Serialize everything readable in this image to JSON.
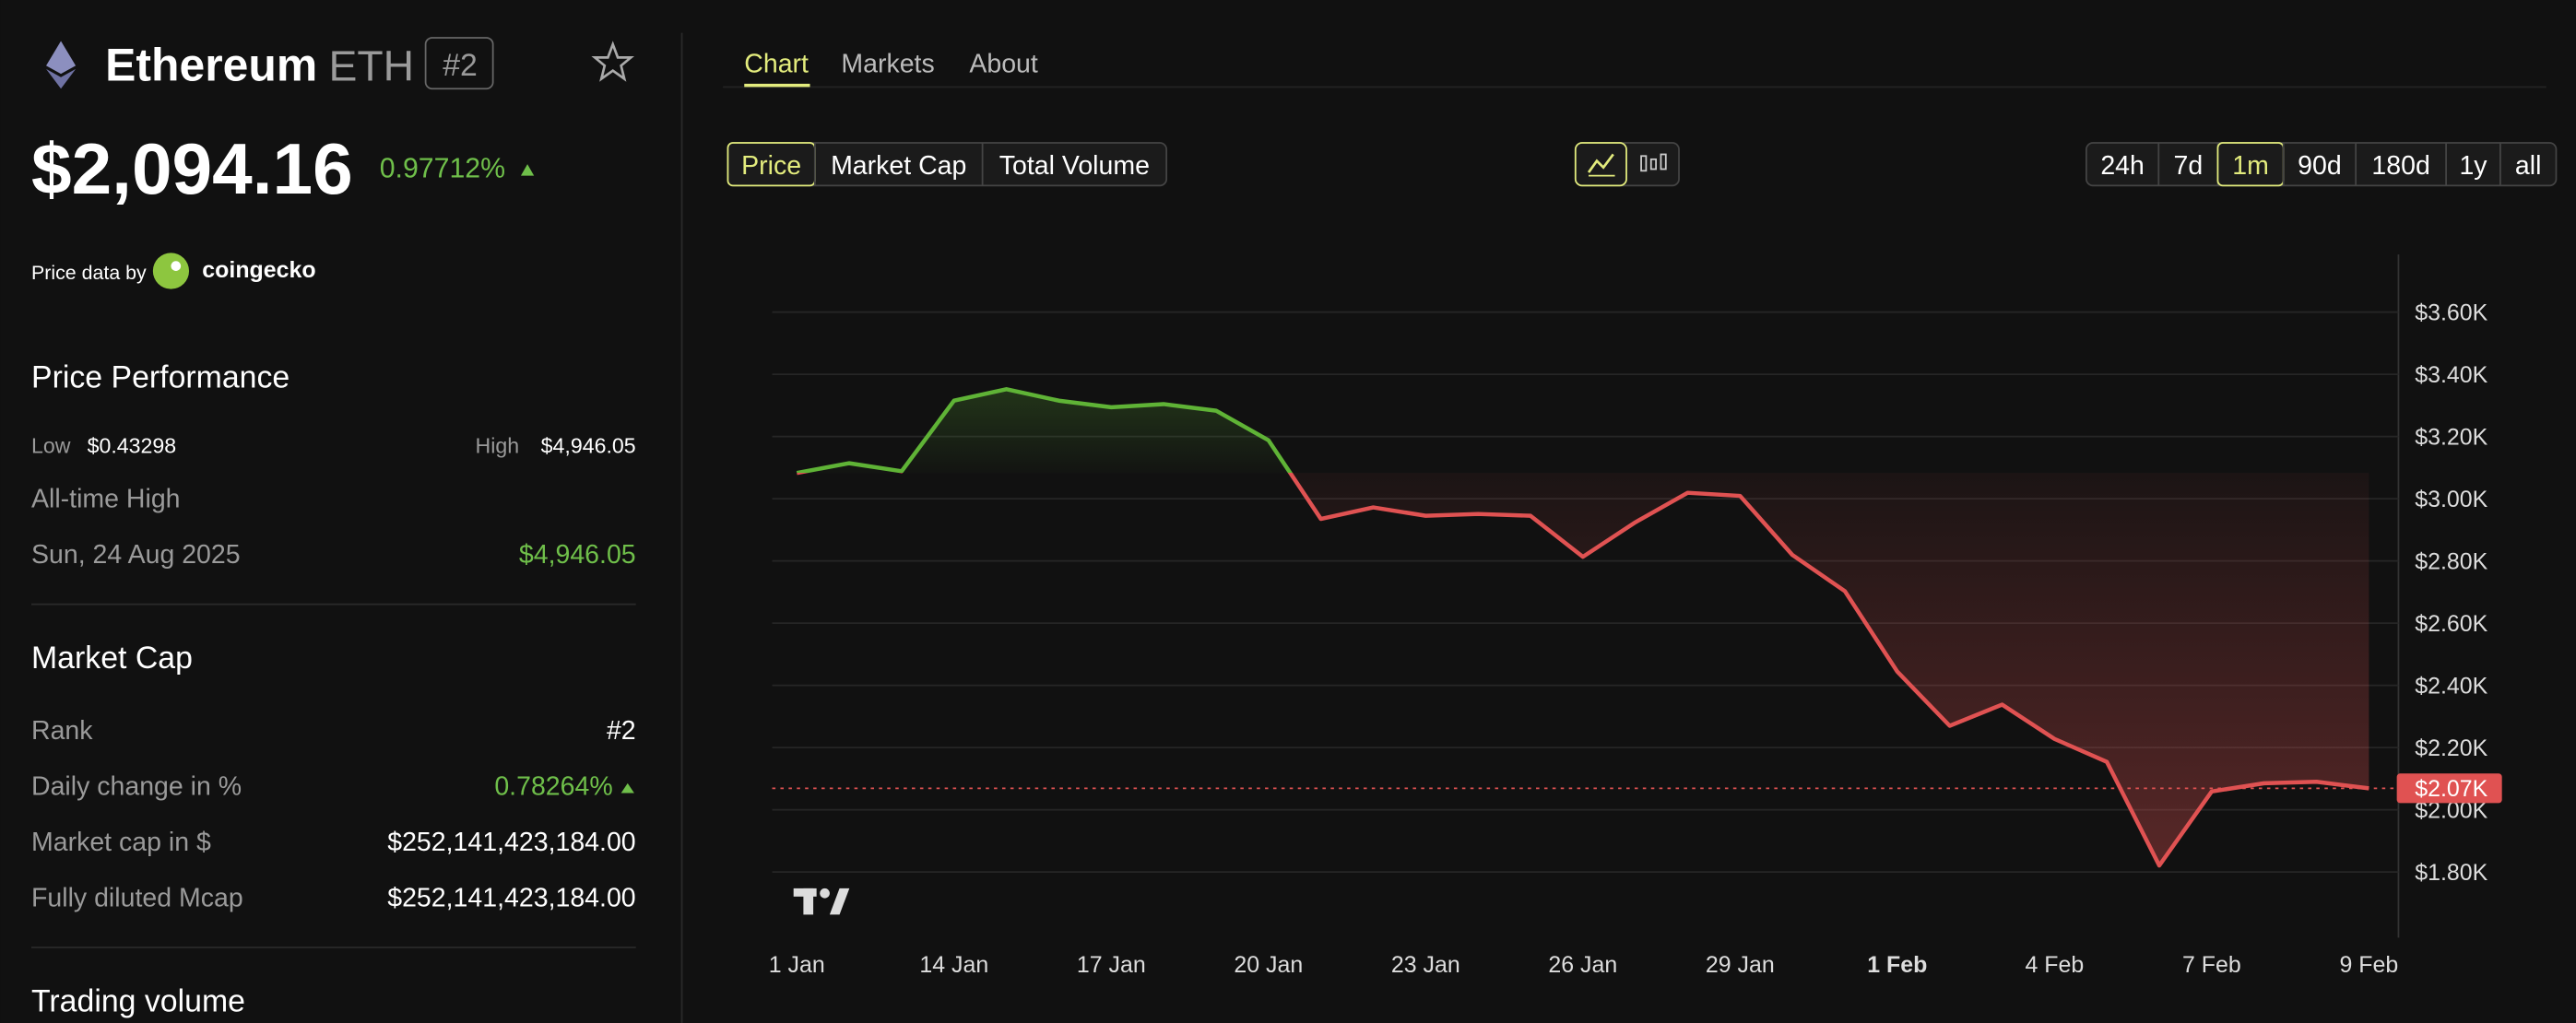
{
  "header": {
    "name": "Ethereum",
    "symbol": "ETH",
    "rank": "#2",
    "price": "$2,094.16",
    "change": "0.97712%",
    "source_label": "Price data by",
    "source": "coingecko"
  },
  "performance": {
    "title": "Price Performance",
    "low_label": "Low",
    "low": "$0.43298",
    "high_label": "High",
    "high": "$4,946.05",
    "ath_label": "All-time High",
    "ath_date": "Sun, 24 Aug 2025",
    "ath_value": "$4,946.05"
  },
  "market_cap": {
    "title": "Market Cap",
    "rows": [
      [
        "Rank",
        "#2"
      ],
      [
        "Daily change in %",
        "0.78264%"
      ],
      [
        "Market cap in $",
        "$252,141,423,184.00"
      ],
      [
        "Fully diluted Mcap",
        "$252,141,423,184.00"
      ]
    ]
  },
  "trading_volume": {
    "title": "Trading volume"
  },
  "tabs": [
    "Chart",
    "Markets",
    "About"
  ],
  "metric_buttons": [
    "Price",
    "Market Cap",
    "Total Volume"
  ],
  "ranges": [
    "24h",
    "7d",
    "1m",
    "90d",
    "180d",
    "1y",
    "all"
  ],
  "chart_data": {
    "type": "line",
    "categories": [
      "1 Jan",
      null,
      null,
      "14 Jan",
      null,
      null,
      "17 Jan",
      null,
      null,
      "20 Jan",
      null,
      null,
      "23 Jan",
      null,
      null,
      "26 Jan",
      null,
      null,
      "29 Jan",
      null,
      null,
      "1 Feb",
      null,
      null,
      "4 Feb",
      null,
      null,
      "7 Feb",
      null,
      null,
      "9 Feb"
    ],
    "values": [
      3083,
      3114,
      3088,
      3315,
      3352,
      3315,
      3294,
      3304,
      3283,
      3188,
      2935,
      2972,
      2945,
      2951,
      2945,
      2813,
      2924,
      3019,
      3009,
      2819,
      2703,
      2444,
      2270,
      2338,
      2228,
      2154,
      1821,
      2059,
      2085,
      2090,
      2069
    ],
    "up_color": "#5fb336",
    "down_color": "#e05252",
    "ylim": [
      1589,
      3785
    ],
    "yticks": [
      {
        "value": 1800,
        "label": "$1.80K"
      },
      {
        "value": 2000,
        "label": "$2.00K"
      },
      {
        "value": 2200,
        "label": "$2.20K"
      },
      {
        "value": 2400,
        "label": "$2.40K"
      },
      {
        "value": 2600,
        "label": "$2.60K"
      },
      {
        "value": 2800,
        "label": "$2.80K"
      },
      {
        "value": 3000,
        "label": "$3.00K"
      },
      {
        "value": 3200,
        "label": "$3.20K"
      },
      {
        "value": 3400,
        "label": "$3.40K"
      },
      {
        "value": 3600,
        "label": "$3.60K"
      }
    ],
    "grid": true,
    "price_marker": {
      "value": 2069,
      "label": "$2.07K"
    }
  }
}
